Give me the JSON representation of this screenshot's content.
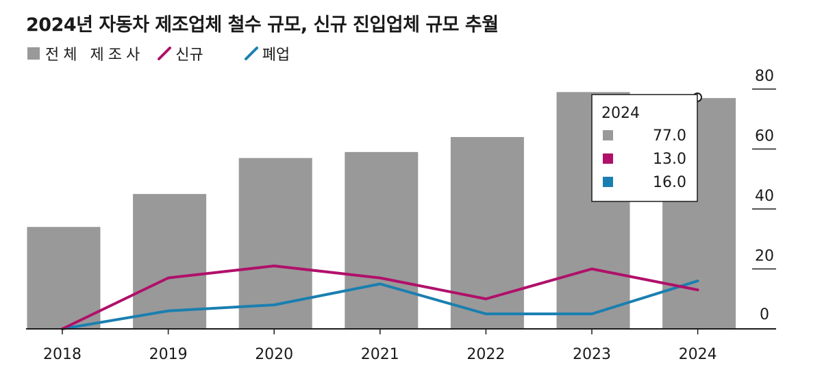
{
  "title": "2024년 자동차 제조업체 철수 규모, 신규 진입업체 규모 추월",
  "legend": {
    "total_label": "전체 제조사",
    "new_label": "신규",
    "closed_label": "폐업"
  },
  "colors": {
    "bar": "#999999",
    "new": "#b0106a",
    "closed": "#1a7fb0"
  },
  "tooltip": {
    "year": "2024",
    "total": "77.0",
    "new": "13.0",
    "closed": "16.0"
  },
  "chart_data": {
    "type": "bar",
    "categories": [
      "2018",
      "2019",
      "2020",
      "2021",
      "2022",
      "2023",
      "2024"
    ],
    "series": [
      {
        "name": "전체 제조사",
        "type": "bar",
        "values": [
          34,
          45,
          57,
          59,
          64,
          79,
          77
        ]
      },
      {
        "name": "신규",
        "type": "line",
        "values": [
          0,
          17,
          21,
          17,
          10,
          20,
          13
        ]
      },
      {
        "name": "폐업",
        "type": "line",
        "values": [
          0,
          6,
          8,
          15,
          5,
          5,
          16
        ]
      }
    ],
    "y_ticks": [
      "0",
      "20",
      "40",
      "60",
      "80"
    ],
    "ylim": [
      0,
      80
    ],
    "y_axis_position": "right",
    "grid": false
  }
}
